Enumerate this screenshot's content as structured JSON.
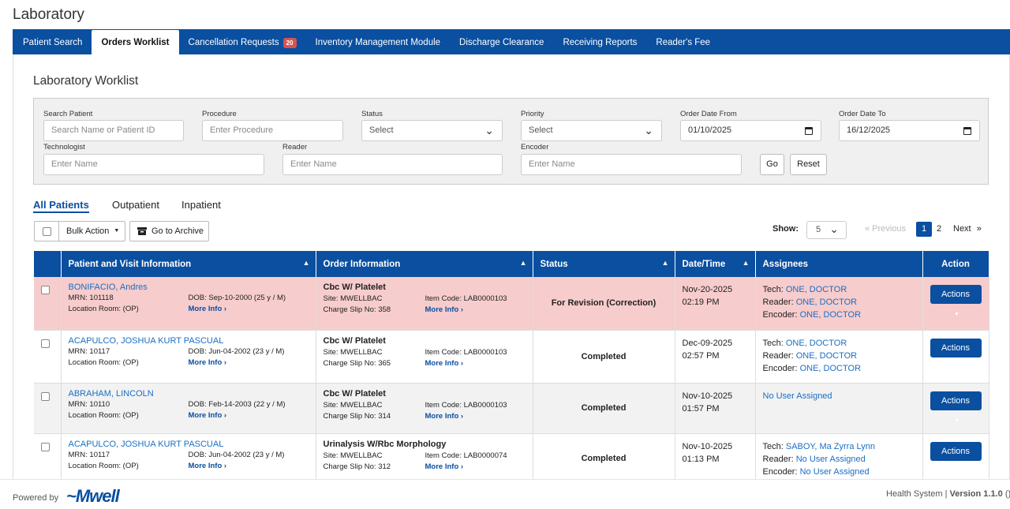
{
  "page_title": "Laboratory",
  "tabs": [
    {
      "label": "Patient Search"
    },
    {
      "label": "Orders Worklist"
    },
    {
      "label": "Cancellation Requests",
      "badge": "20"
    },
    {
      "label": "Inventory Management Module"
    },
    {
      "label": "Discharge Clearance"
    },
    {
      "label": "Receiving Reports"
    },
    {
      "label": "Reader's Fee"
    }
  ],
  "worklist_title": "Laboratory Worklist",
  "filters": {
    "search_patient": {
      "label": "Search Patient",
      "placeholder": "Search Name or Patient ID"
    },
    "procedure": {
      "label": "Procedure",
      "placeholder": "Enter Procedure"
    },
    "status": {
      "label": "Status",
      "value": "Select"
    },
    "priority": {
      "label": "Priority",
      "value": "Select"
    },
    "order_date_from": {
      "label": "Order Date From",
      "value": "01/10/2025"
    },
    "order_date_to": {
      "label": "Order Date To",
      "value": "16/12/2025"
    },
    "technologist": {
      "label": "Technologist",
      "placeholder": "Enter Name"
    },
    "reader": {
      "label": "Reader",
      "placeholder": "Enter Name"
    },
    "encoder": {
      "label": "Encoder",
      "placeholder": "Enter Name"
    },
    "go_label": "Go",
    "reset_label": "Reset"
  },
  "patient_tabs": [
    "All Patients",
    "Outpatient",
    "Inpatient"
  ],
  "toolbar": {
    "bulk_action": "Bulk Action",
    "archive": "Go to Archive"
  },
  "pagination": {
    "show_label": "Show:",
    "show_value": "5",
    "previous": "« Previous",
    "page1": "1",
    "page2": "2",
    "next": "Next",
    "next_arrow": "»"
  },
  "table": {
    "headers": [
      "Patient and Visit Information",
      "Order Information",
      "Status",
      "Date/Time",
      "Assignees",
      "Action"
    ],
    "rows": [
      {
        "name": "BONIFACIO, Andres",
        "mrn": "MRN: 101118",
        "dob": "DOB: Sep-10-2000 (25 y / M)",
        "location": "Location Room: (OP)",
        "more": "More Info ›",
        "procedure": "Cbc W/ Platelet",
        "site": "Site: MWELLBAC",
        "item_code": "Item Code: LAB0000103",
        "charge_slip": "Charge Slip No: 358",
        "status": "For Revision (Correction)",
        "date": "Nov-20-2025",
        "time": "02:19 PM",
        "tech_label": "Tech:",
        "tech": "ONE, DOCTOR",
        "reader_label": "Reader:",
        "reader": "ONE, DOCTOR",
        "encoder_label": "Encoder:",
        "encoder": "ONE, DOCTOR",
        "action": "Actions"
      },
      {
        "name": "ACAPULCO, JOSHUA KURT PASCUAL",
        "mrn": "MRN: 10117",
        "dob": "DOB: Jun-04-2002 (23 y / M)",
        "location": "Location Room: (OP)",
        "more": "More Info ›",
        "procedure": "Cbc W/ Platelet",
        "site": "Site: MWELLBAC",
        "item_code": "Item Code: LAB0000103",
        "charge_slip": "Charge Slip No: 365",
        "status": "Completed",
        "date": "Dec-09-2025",
        "time": "02:57 PM",
        "tech_label": "Tech:",
        "tech": "ONE, DOCTOR",
        "reader_label": "Reader:",
        "reader": "ONE, DOCTOR",
        "encoder_label": "Encoder:",
        "encoder": "ONE, DOCTOR",
        "action": "Actions"
      },
      {
        "name": "ABRAHAM, LINCOLN",
        "mrn": "MRN: 10110",
        "dob": "DOB: Feb-14-2003 (22 y / M)",
        "location": "Location Room: (OP)",
        "more": "More Info ›",
        "procedure": "Cbc W/ Platelet",
        "site": "Site: MWELLBAC",
        "item_code": "Item Code: LAB0000103",
        "charge_slip": "Charge Slip No: 314",
        "status": "Completed",
        "date": "Nov-10-2025",
        "time": "01:57 PM",
        "unassigned": "No User Assigned",
        "action": "Actions"
      },
      {
        "name": "ACAPULCO, JOSHUA KURT PASCUAL",
        "mrn": "MRN: 10117",
        "dob": "DOB: Jun-04-2002 (23 y / M)",
        "location": "Location Room: (OP)",
        "more": "More Info ›",
        "procedure": "Urinalysis W/Rbc Morphology",
        "site": "Site: MWELLBAC",
        "item_code": "Item Code: LAB0000074",
        "charge_slip": "Charge Slip No: 312",
        "status": "Completed",
        "date": "Nov-10-2025",
        "time": "01:13 PM",
        "tech_label": "Tech:",
        "tech": "SABOY, Ma Zyrra Lynn",
        "reader_label": "Reader:",
        "reader": "No User Assigned",
        "encoder_label": "Encoder:",
        "encoder": "No User Assigned",
        "action": "Actions"
      }
    ]
  },
  "footer": {
    "powered_by": "Powered by",
    "logo_text": "~Mwell",
    "system": "Health System | ",
    "version": "Version 1.1.0",
    "suffix": " ()"
  }
}
